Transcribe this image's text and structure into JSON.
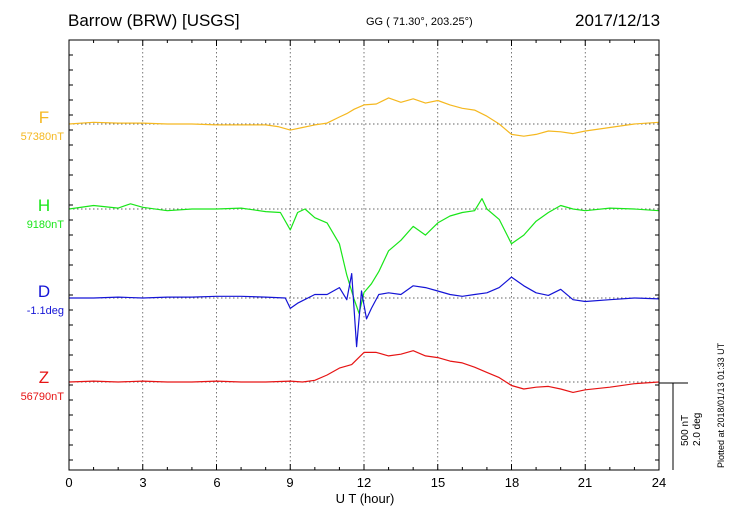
{
  "header": {
    "station": "Barrow (BRW)  [USGS]",
    "coords": "GG ( 71.30°, 203.25°)",
    "date": "2017/12/13"
  },
  "chart_data": {
    "type": "line",
    "xlabel": "U T (hour)",
    "xlim": [
      0,
      24
    ],
    "xticks": [
      "0",
      "3",
      "6",
      "9",
      "12",
      "15",
      "18",
      "21",
      "24"
    ],
    "scale": {
      "nT": "500 nT",
      "deg": "2.0 deg"
    },
    "footer_note": "Plotted at 2018/01/13 01:33 UT",
    "series": [
      {
        "name": "F",
        "baseline": "57380nT",
        "color": "#f5b820",
        "x": [
          0,
          1,
          2,
          3,
          4,
          5,
          6,
          7,
          8,
          8.5,
          9,
          9.5,
          10,
          10.5,
          11,
          11.3,
          11.6,
          12,
          12.5,
          13,
          13.5,
          14,
          14.5,
          15,
          15.5,
          16,
          16.5,
          17,
          17.5,
          18,
          18.5,
          19,
          19.5,
          20,
          20.5,
          21,
          22,
          23,
          24
        ],
        "y": [
          0,
          10,
          5,
          5,
          0,
          0,
          -5,
          -5,
          -5,
          -15,
          -35,
          -20,
          -5,
          5,
          40,
          60,
          85,
          110,
          115,
          150,
          125,
          145,
          120,
          135,
          110,
          90,
          80,
          45,
          0,
          -60,
          -70,
          -60,
          -40,
          -45,
          -55,
          -40,
          -20,
          0,
          10
        ]
      },
      {
        "name": "H",
        "baseline": "9180nT",
        "color": "#19e619",
        "x": [
          0,
          1,
          2,
          2.5,
          3,
          4,
          5,
          6,
          7,
          8,
          8.6,
          9,
          9.3,
          9.6,
          10,
          10.5,
          11,
          11.3,
          11.6,
          11.8,
          12,
          12.3,
          12.6,
          13,
          13.5,
          14,
          14.5,
          15,
          15.5,
          16,
          16.5,
          16.8,
          17,
          17.5,
          18,
          18.5,
          19,
          19.5,
          20,
          20.5,
          21,
          22,
          23,
          24
        ],
        "y": [
          0,
          20,
          5,
          30,
          10,
          -10,
          0,
          0,
          5,
          -15,
          -20,
          -120,
          -20,
          0,
          -50,
          -80,
          -200,
          -380,
          -520,
          -600,
          -480,
          -430,
          -360,
          -240,
          -180,
          -100,
          -150,
          -80,
          -40,
          -20,
          -10,
          60,
          0,
          -60,
          -200,
          -150,
          -70,
          -20,
          20,
          0,
          -10,
          5,
          0,
          -10
        ]
      },
      {
        "name": "D",
        "baseline": "-1.1deg",
        "color": "#1414d6",
        "x": [
          0,
          1,
          2,
          3,
          4,
          5,
          6,
          7,
          8,
          8.8,
          9,
          9.3,
          10,
          10.5,
          11,
          11.3,
          11.5,
          11.7,
          11.9,
          12.1,
          12.3,
          12.6,
          13,
          13.5,
          14,
          14.5,
          15,
          15.5,
          16,
          16.5,
          17,
          17.5,
          18,
          18.5,
          19,
          19.5,
          20,
          20.5,
          21,
          22,
          23,
          24
        ],
        "y": [
          0,
          0,
          5,
          0,
          5,
          5,
          10,
          10,
          5,
          0,
          -60,
          -30,
          20,
          20,
          60,
          -10,
          140,
          -280,
          40,
          -120,
          -60,
          20,
          30,
          20,
          70,
          60,
          40,
          20,
          10,
          20,
          30,
          60,
          120,
          70,
          30,
          15,
          50,
          -10,
          -20,
          -10,
          0,
          -5
        ]
      },
      {
        "name": "Z",
        "baseline": "56790nT",
        "color": "#e61414",
        "x": [
          0,
          1,
          2,
          3,
          4,
          5,
          6,
          7,
          8,
          9,
          9.5,
          10,
          10.5,
          11,
          11.5,
          12,
          12.5,
          13,
          13.5,
          14,
          14.5,
          15,
          15.5,
          16,
          16.5,
          17,
          17.5,
          18,
          18.5,
          19,
          19.5,
          20,
          20.5,
          21,
          22,
          23,
          24
        ],
        "y": [
          0,
          5,
          0,
          5,
          0,
          0,
          5,
          0,
          0,
          5,
          0,
          10,
          40,
          80,
          100,
          170,
          170,
          150,
          160,
          180,
          150,
          140,
          120,
          110,
          85,
          55,
          25,
          -20,
          -40,
          -30,
          -25,
          -40,
          -60,
          -45,
          -30,
          -10,
          0
        ]
      }
    ]
  }
}
